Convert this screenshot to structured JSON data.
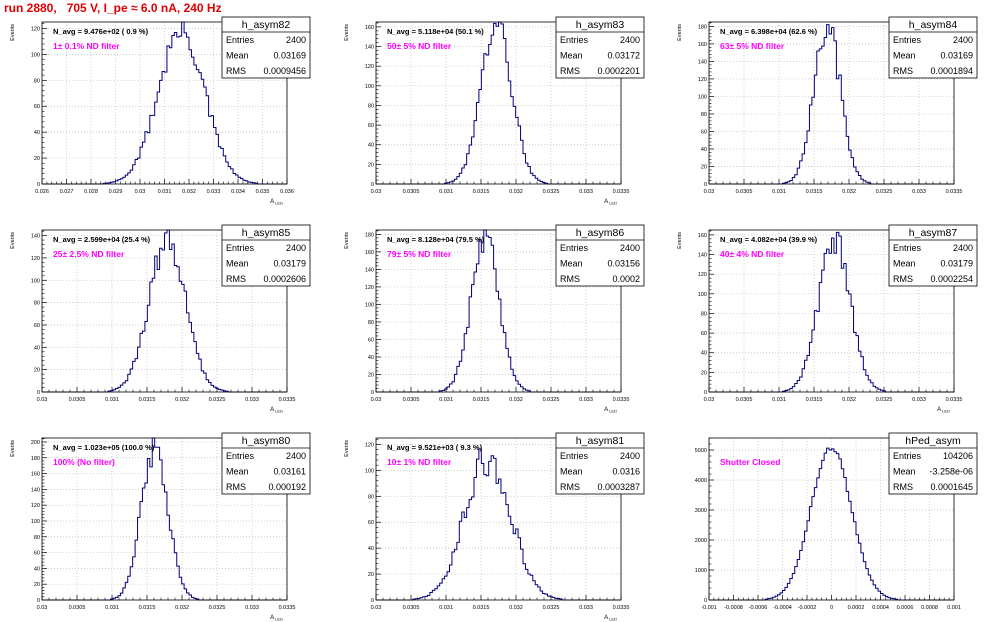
{
  "run_title": "run 2880,   705 V, I_pe ≈ 6.0 nA, 240 Hz",
  "colors": {
    "title": "#e00000",
    "annotation": "#ff00ff",
    "histogram": "#00007a",
    "frame": "#000000",
    "grid": "#bdbdbd",
    "background": "#ffffff"
  },
  "chart_data": [
    {
      "type": "histogram",
      "name": "h_asym82",
      "xlabel": "A_LED",
      "ylabel": "Events",
      "xlim": [
        0.026,
        0.036
      ],
      "ylim": [
        0,
        125
      ],
      "grid": true,
      "x_ticks": [
        "0.026",
        "0.027",
        "0.028",
        "0.029",
        "0.03",
        "0.031",
        "0.032",
        "0.033",
        "0.034",
        "0.035",
        "0.036"
      ],
      "y_ticks": [
        "0",
        "20",
        "40",
        "60",
        "80",
        "100",
        "120"
      ],
      "naverage": "N_avg = 9.476e+02 ( 0.9 %)",
      "annotation": "1± 0.1% ND filter",
      "stats": {
        "Entries": "2400",
        "Mean": "0.03169",
        "RMS": "0.0009456"
      },
      "profile": {
        "mean": 0.03169,
        "rms": 0.0009456,
        "peak": 118,
        "noise": 0.1
      }
    },
    {
      "type": "histogram",
      "name": "h_asym83",
      "xlabel": "A_LED",
      "ylabel": "Events",
      "xlim": [
        0.03,
        0.0335
      ],
      "ylim": [
        0,
        165
      ],
      "grid": true,
      "x_ticks": [
        "0.03",
        "0.0305",
        "0.031",
        "0.0315",
        "0.032",
        "0.0325",
        "0.033",
        "0.0335"
      ],
      "y_ticks": [
        "0",
        "20",
        "40",
        "60",
        "80",
        "100",
        "120",
        "140",
        "160"
      ],
      "naverage": "N_avg = 5.118e+04 (50.1 %)",
      "annotation": "50± 5% ND filter",
      "stats": {
        "Entries": "2400",
        "Mean": "0.03172",
        "RMS": "0.0002201"
      },
      "profile": {
        "mean": 0.03172,
        "rms": 0.0002201,
        "peak": 163,
        "noise": 0.1
      }
    },
    {
      "type": "histogram",
      "name": "h_asym84",
      "xlabel": "",
      "ylabel": "Events",
      "xlim": [
        0.03,
        0.0335
      ],
      "ylim": [
        0,
        185
      ],
      "grid": true,
      "x_ticks": [
        "0.03",
        "0.0305",
        "0.031",
        "0.0315",
        "0.032",
        "0.0325",
        "0.033",
        "0.0335"
      ],
      "y_ticks": [
        "0",
        "20",
        "40",
        "60",
        "80",
        "100",
        "120",
        "140",
        "160",
        "180"
      ],
      "naverage": "N_avg = 6.398e+04 (62.6 %)",
      "annotation": "63± 5% ND filter",
      "stats": {
        "Entries": "2400",
        "Mean": "0.03169",
        "RMS": "0.0001894"
      },
      "profile": {
        "mean": 0.03169,
        "rms": 0.0001894,
        "peak": 180,
        "noise": 0.1
      }
    },
    {
      "type": "histogram",
      "name": "h_asym85",
      "xlabel": "A_LED",
      "ylabel": "Events",
      "xlim": [
        0.03,
        0.0335
      ],
      "ylim": [
        0,
        145
      ],
      "grid": true,
      "x_ticks": [
        "0.03",
        "0.0305",
        "0.031",
        "0.0315",
        "0.032",
        "0.0325",
        "0.033",
        "0.0335"
      ],
      "y_ticks": [
        "0",
        "20",
        "40",
        "60",
        "80",
        "100",
        "120",
        "140"
      ],
      "naverage": "N_avg = 2.599e+04 (25.4 %)",
      "annotation": "25± 2.5% ND filter",
      "stats": {
        "Entries": "2400",
        "Mean": "0.03179",
        "RMS": "0.0002606"
      },
      "profile": {
        "mean": 0.03179,
        "rms": 0.0002606,
        "peak": 135,
        "noise": 0.1
      }
    },
    {
      "type": "histogram",
      "name": "h_asym86",
      "xlabel": "A_LED",
      "ylabel": "Events",
      "xlim": [
        0.03,
        0.0335
      ],
      "ylim": [
        0,
        185
      ],
      "grid": true,
      "x_ticks": [
        "0.03",
        "0.0305",
        "0.031",
        "0.0315",
        "0.032",
        "0.0325",
        "0.033",
        "0.0335"
      ],
      "y_ticks": [
        "0",
        "20",
        "40",
        "60",
        "80",
        "100",
        "120",
        "140",
        "160",
        "180"
      ],
      "naverage": "N_avg = 8.128e+04 (79.5 %)",
      "annotation": "79± 5% ND filter",
      "stats": {
        "Entries": "2400",
        "Mean": "0.03156",
        "RMS": "0.0002"
      },
      "profile": {
        "mean": 0.03156,
        "rms": 0.0002,
        "peak": 175,
        "noise": 0.1
      }
    },
    {
      "type": "histogram",
      "name": "h_asym87",
      "xlabel": "A_LED",
      "ylabel": "Events",
      "xlim": [
        0.03,
        0.0335
      ],
      "ylim": [
        0,
        165
      ],
      "grid": true,
      "x_ticks": [
        "0.03",
        "0.0305",
        "0.031",
        "0.0315",
        "0.032",
        "0.0325",
        "0.033",
        "0.0335"
      ],
      "y_ticks": [
        "0",
        "20",
        "40",
        "60",
        "80",
        "100",
        "120",
        "140",
        "160"
      ],
      "naverage": "N_avg = 4.082e+04 (39.9 %)",
      "annotation": "40± 4% ND filter",
      "stats": {
        "Entries": "2400",
        "Mean": "0.03179",
        "RMS": "0.0002254"
      },
      "profile": {
        "mean": 0.03179,
        "rms": 0.0002254,
        "peak": 155,
        "noise": 0.1
      }
    },
    {
      "type": "histogram",
      "name": "h_asym80",
      "xlabel": "A_LED",
      "ylabel": "Events",
      "xlim": [
        0.03,
        0.0335
      ],
      "ylim": [
        0,
        205
      ],
      "grid": true,
      "x_ticks": [
        "0.03",
        "0.0305",
        "0.031",
        "0.0315",
        "0.032",
        "0.0325",
        "0.033",
        "0.0335"
      ],
      "y_ticks": [
        "0",
        "20",
        "40",
        "60",
        "80",
        "100",
        "120",
        "140",
        "160",
        "180",
        "200"
      ],
      "naverage": "N_avg = 1.023e+05 (100.0 %)",
      "annotation": "100% (No filter)",
      "stats": {
        "Entries": "2400",
        "Mean": "0.03161",
        "RMS": "0.000192"
      },
      "profile": {
        "mean": 0.03161,
        "rms": 0.000192,
        "peak": 192,
        "noise": 0.1
      }
    },
    {
      "type": "histogram",
      "name": "h_asym81",
      "xlabel": "A_LED",
      "ylabel": "Events",
      "xlim": [
        0.03,
        0.0335
      ],
      "ylim": [
        0,
        125
      ],
      "grid": true,
      "x_ticks": [
        "0.03",
        "0.0305",
        "0.031",
        "0.0315",
        "0.032",
        "0.0325",
        "0.033",
        "0.0335"
      ],
      "y_ticks": [
        "0",
        "20",
        "40",
        "60",
        "80",
        "100",
        "120"
      ],
      "naverage": "N_avg = 9.521e+03 ( 9.3 %)",
      "annotation": "10± 1% ND filter",
      "stats": {
        "Entries": "2400",
        "Mean": "0.0316",
        "RMS": "0.0003287"
      },
      "profile": {
        "mean": 0.0316,
        "rms": 0.0003287,
        "peak": 110,
        "noise": 0.14
      }
    },
    {
      "type": "histogram",
      "name": "hPed_asym",
      "xlabel": "",
      "ylabel": "",
      "xlim": [
        -0.001,
        0.001
      ],
      "ylim": [
        0,
        5400
      ],
      "grid": true,
      "x_ticks": [
        "-0.001",
        "-0.0008",
        "-0.0006",
        "-0.0004",
        "-0.0002",
        "0",
        "0.0002",
        "0.0004",
        "0.0006",
        "0.0008",
        "0.001"
      ],
      "y_ticks": [
        "0",
        "1000",
        "2000",
        "3000",
        "4000",
        "5000"
      ],
      "naverage": "",
      "annotation": "Shutter Closed",
      "stats": {
        "Entries": "104206",
        "Mean": "-3.258e-06",
        "RMS": "0.0001645"
      },
      "profile": {
        "mean": -3.258e-06,
        "rms": 0.0001645,
        "peak": 5100,
        "noise": 0.02
      }
    }
  ]
}
